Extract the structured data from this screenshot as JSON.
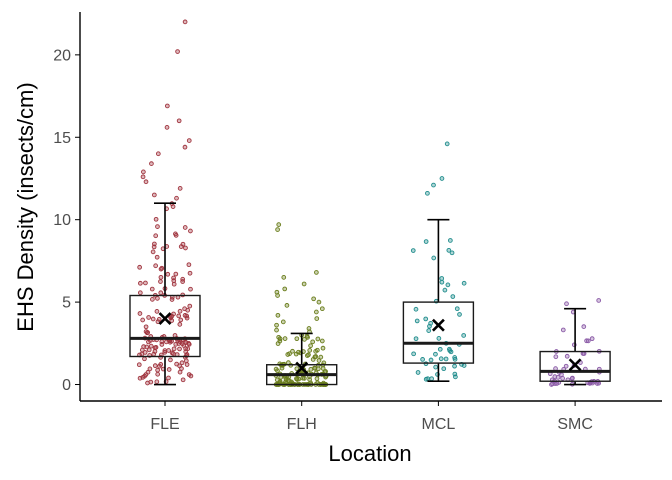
{
  "chart_data": {
    "type": "box",
    "xlabel": "Location",
    "ylabel": "EHS Density (insects/cm)",
    "ylim": [
      -1,
      22.6
    ],
    "yticks": [
      0,
      5,
      10,
      15,
      20
    ],
    "ytick_labels": [
      "0",
      "5",
      "10",
      "15",
      "20"
    ],
    "grid": false,
    "categories": [
      "FLE",
      "FLH",
      "MCL",
      "SMC"
    ],
    "colors": {
      "FLE": "#a0353f",
      "FLH": "#6a7d1c",
      "MCL": "#1f8c8c",
      "SMC": "#8a5aa6"
    },
    "boxes": [
      {
        "category": "FLE",
        "whisker_low": 0.0,
        "q1": 1.7,
        "median": 2.8,
        "q3": 5.4,
        "whisker_high": 11.0,
        "mean": 4.0,
        "n": 180,
        "outliers": [
          22.0,
          20.2,
          16.9,
          16.0,
          15.6,
          14.8,
          14.4,
          14.0,
          13.4,
          12.9,
          12.6,
          12.3,
          11.9,
          11.5,
          11.3
        ]
      },
      {
        "category": "FLH",
        "whisker_low": 0.0,
        "q1": 0.0,
        "median": 0.6,
        "q3": 1.2,
        "whisker_high": 3.1,
        "mean": 1.0,
        "n": 160,
        "outliers": [
          9.7,
          9.4,
          6.8,
          6.5,
          6.1,
          5.8,
          5.6,
          5.4,
          5.2,
          5.0,
          4.8,
          4.6,
          4.4,
          4.2,
          4.0,
          3.8,
          3.6,
          3.4,
          3.3,
          3.2
        ]
      },
      {
        "category": "MCL",
        "whisker_low": 0.2,
        "q1": 1.3,
        "median": 2.5,
        "q3": 5.0,
        "whisker_high": 10.0,
        "mean": 3.6,
        "n": 55,
        "outliers": [
          14.6,
          12.5,
          12.1,
          11.6
        ]
      },
      {
        "category": "SMC",
        "whisker_low": 0.0,
        "q1": 0.2,
        "median": 0.8,
        "q3": 2.0,
        "whisker_high": 4.6,
        "mean": 1.2,
        "n": 50,
        "outliers": [
          5.1,
          4.9
        ]
      }
    ]
  }
}
